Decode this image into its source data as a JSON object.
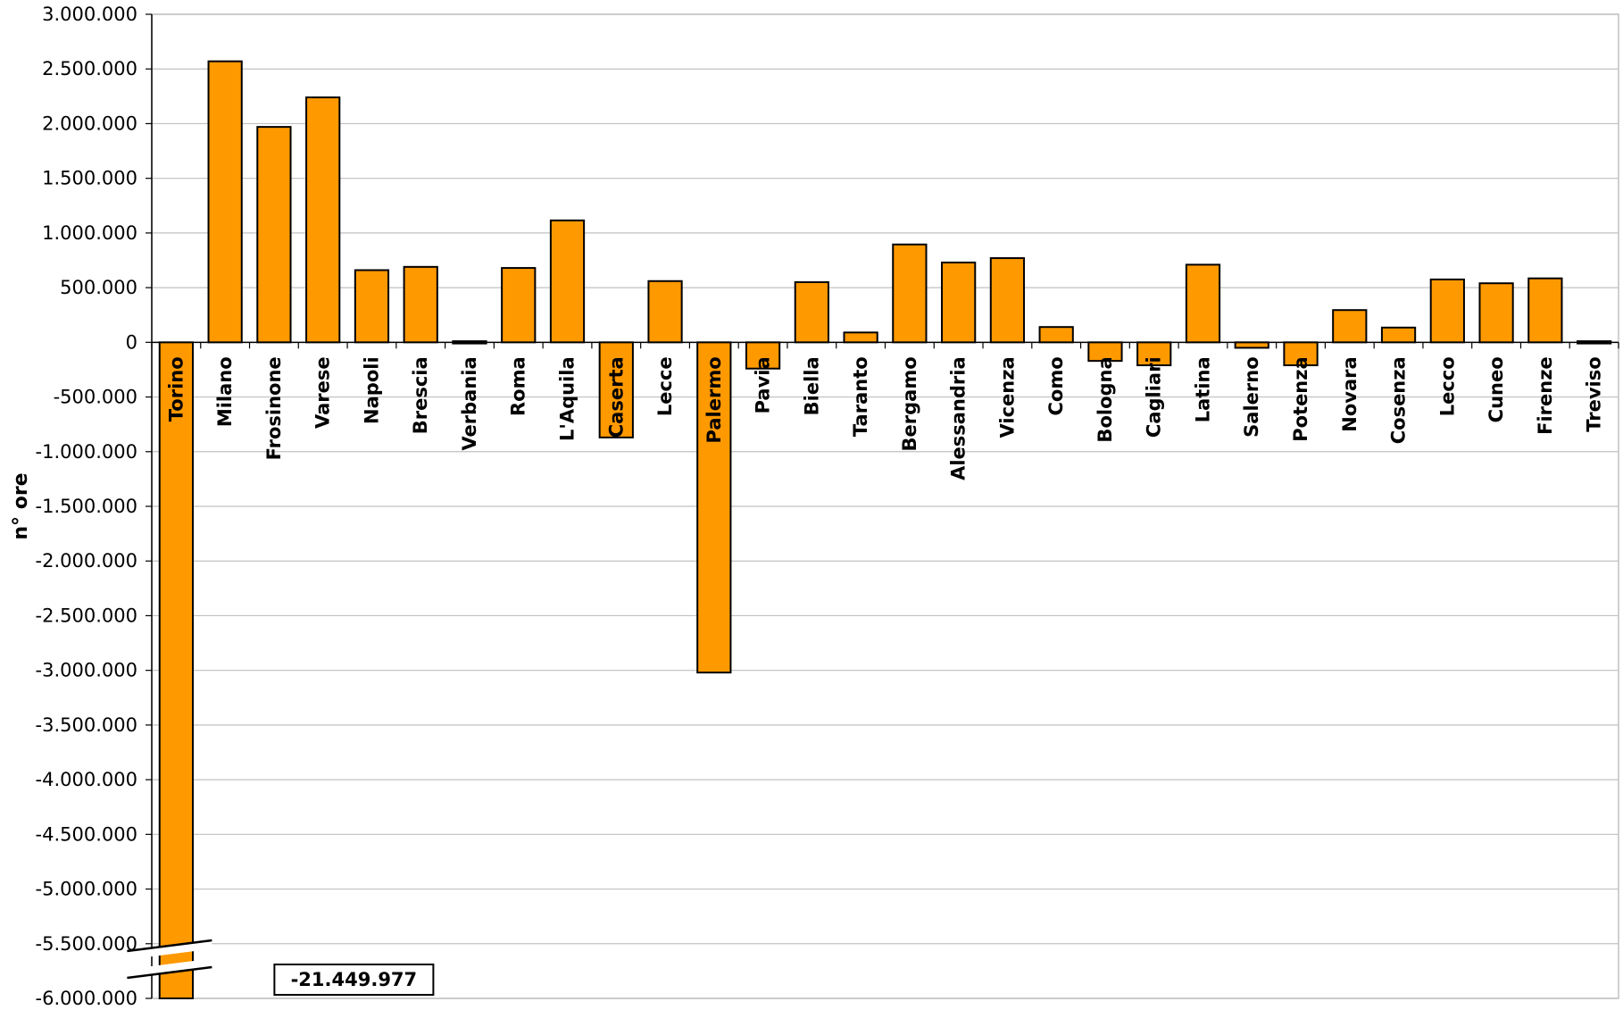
{
  "chart_data": {
    "type": "bar",
    "title": "",
    "xlabel": "",
    "ylabel": "n° ore",
    "ylim": [
      -6000000,
      3000000
    ],
    "ytick_values": [
      3000000,
      2500000,
      2000000,
      1500000,
      1000000,
      500000,
      0,
      -500000,
      -1000000,
      -1500000,
      -2000000,
      -2500000,
      -3000000,
      -3500000,
      -4000000,
      -4500000,
      -5000000,
      -5500000,
      -6000000
    ],
    "ytick_labels": [
      "3.000.000",
      "2.500.000",
      "2.000.000",
      "1.500.000",
      "1.000.000",
      "500.000",
      "0",
      "-500.000",
      "-1.000.000",
      "-1.500.000",
      "-2.000.000",
      "-2.500.000",
      "-3.000.000",
      "-3.500.000",
      "-4.000.000",
      "-4.500.000",
      "-5.000.000",
      "-5.500.000",
      "-6.000.000"
    ],
    "grid": true,
    "categories": [
      "Torino",
      "Milano",
      "Frosinone",
      "Varese",
      "Napoli",
      "Brescia",
      "Verbania",
      "Roma",
      "L'Aquila",
      "Caserta",
      "Lecce",
      "Palermo",
      "Pavia",
      "Biella",
      "Taranto",
      "Bergamo",
      "Alessandria",
      "Vicenza",
      "Como",
      "Bologna",
      "Cagliari",
      "Latina",
      "Salerno",
      "Potenza",
      "Novara",
      "Cosenza",
      "Lecco",
      "Cuneo",
      "Firenze",
      "Treviso"
    ],
    "values": [
      -21449977,
      2570000,
      1970000,
      2240000,
      660000,
      690000,
      10000,
      680000,
      1115000,
      -870000,
      560000,
      -3020000,
      -240000,
      550000,
      90000,
      895000,
      730000,
      770000,
      140000,
      -170000,
      -210000,
      710000,
      -50000,
      -210000,
      295000,
      135000,
      575000,
      540000,
      585000,
      10000
    ],
    "bar_color": "#FF9900",
    "axis_break": {
      "category": "Torino",
      "annotation": "-21.449.977"
    }
  }
}
